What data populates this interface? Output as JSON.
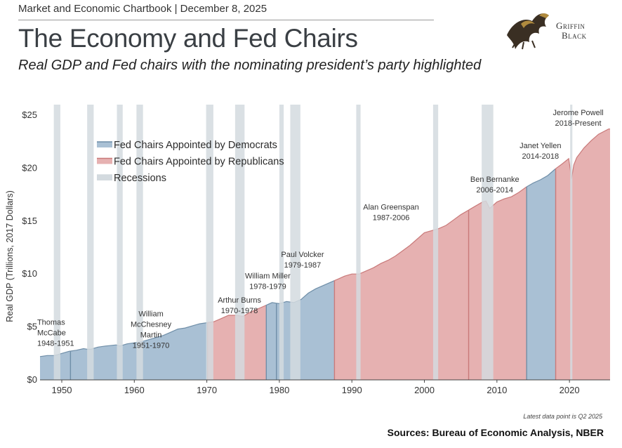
{
  "header": {
    "chartbook_line": "Market and Economic Chartbook | December 8, 2025",
    "title": "The Economy and Fed Chairs",
    "subtitle": "Real GDP and Fed chairs with the nominating president’s party highlighted"
  },
  "logo": {
    "line1": "Griffin",
    "line2": "Black",
    "icon": "griffin-icon"
  },
  "footnote": "Latest data point is Q2 2025",
  "source": "Sources: Bureau of Economic Analysis, NBER",
  "colors": {
    "democrat": "#a9c0d4",
    "democrat_line": "#6f8ea8",
    "republican": "#e6b1b1",
    "republican_line": "#c97a7a",
    "recession": "#d3dadf",
    "axis_text": "#333333"
  },
  "chart_data": {
    "type": "area",
    "ylabel": "Real GDP (Trillions, 2017 Dollars)",
    "xlim": [
      1947,
      2025.6
    ],
    "ylim": [
      0,
      26
    ],
    "yticks": [
      0,
      5,
      10,
      15,
      20,
      25
    ],
    "ytick_labels": [
      "$0",
      "$5",
      "$10",
      "$15",
      "$20",
      "$25"
    ],
    "xticks": [
      1950,
      1960,
      1970,
      1980,
      1990,
      2000,
      2010,
      2020
    ],
    "xtick_labels": [
      "1950",
      "1960",
      "1970",
      "1980",
      "1990",
      "2000",
      "2010",
      "2020"
    ],
    "legend": {
      "placement": "top-left",
      "items": [
        {
          "label": "Fed Chairs Appointed by Democrats",
          "key": "democrat"
        },
        {
          "label": "Fed Chairs Appointed by Republicans",
          "key": "republican"
        },
        {
          "label": "Recessions",
          "key": "recession"
        }
      ]
    },
    "gdp_series": {
      "x": [
        1947,
        1948,
        1949,
        1950,
        1951,
        1952,
        1953,
        1953.5,
        1954,
        1955,
        1956,
        1957.5,
        1958,
        1959,
        1960,
        1961,
        1962,
        1963,
        1964,
        1965,
        1966,
        1967,
        1968,
        1969,
        1970,
        1971,
        1972,
        1973,
        1974,
        1975,
        1976,
        1977,
        1978,
        1979,
        1980,
        1981,
        1982,
        1983,
        1984,
        1985,
        1986,
        1987,
        1988,
        1989,
        1990,
        1991,
        1992,
        1993,
        1994,
        1995,
        1996,
        1997,
        1998,
        1999,
        2000,
        2001,
        2002,
        2003,
        2004,
        2005,
        2006,
        2007,
        2008,
        2008.5,
        2009,
        2010,
        2011,
        2012,
        2013,
        2014,
        2015,
        2016,
        2017,
        2018,
        2019,
        2019.9,
        2020.3,
        2020.6,
        2021,
        2022,
        2023,
        2024,
        2025.4
      ],
      "y": [
        2.2,
        2.3,
        2.3,
        2.5,
        2.7,
        2.8,
        2.95,
        2.9,
        2.9,
        3.1,
        3.2,
        3.3,
        3.2,
        3.4,
        3.5,
        3.6,
        3.8,
        4.0,
        4.2,
        4.5,
        4.8,
        4.9,
        5.1,
        5.3,
        5.4,
        5.5,
        5.8,
        6.1,
        6.1,
        6.0,
        6.4,
        6.7,
        7.0,
        7.3,
        7.2,
        7.4,
        7.3,
        7.6,
        8.2,
        8.6,
        8.9,
        9.2,
        9.5,
        9.8,
        10.0,
        10.0,
        10.3,
        10.6,
        11.0,
        11.3,
        11.7,
        12.2,
        12.7,
        13.3,
        13.9,
        14.1,
        14.3,
        14.6,
        15.1,
        15.6,
        16.0,
        16.4,
        16.8,
        16.9,
        16.2,
        16.8,
        17.1,
        17.3,
        17.7,
        18.2,
        18.6,
        18.9,
        19.3,
        19.9,
        20.4,
        20.9,
        19.0,
        20.3,
        21.0,
        21.9,
        22.6,
        23.2,
        23.7
      ]
    },
    "recessions": [
      [
        1948.9,
        1949.8
      ],
      [
        1953.5,
        1954.4
      ],
      [
        1957.6,
        1958.4
      ],
      [
        1960.3,
        1961.2
      ],
      [
        1969.9,
        1970.9
      ],
      [
        1973.9,
        1975.2
      ],
      [
        1980.0,
        1980.6
      ],
      [
        1981.5,
        1982.9
      ],
      [
        1990.6,
        1991.2
      ],
      [
        2001.2,
        2001.9
      ],
      [
        2007.9,
        2009.5
      ],
      [
        2020.1,
        2020.4
      ]
    ],
    "chairs": [
      {
        "name": "Thomas McCabe",
        "lines": [
          "Thomas",
          "McCabe",
          "1948-1951"
        ],
        "start": 1947.0,
        "end": 1951.2,
        "party": "democrat",
        "label_x": 1946.9,
        "label_y": 5.2
      },
      {
        "name": "William McChesney Martin",
        "lines": [
          "William",
          "McChesney",
          "Martin",
          "1951-1970"
        ],
        "start": 1951.2,
        "end": 1970.1,
        "party": "democrat",
        "label_x": 1962.3,
        "label_y": 6.0
      },
      {
        "name": "Arthur Burns",
        "lines": [
          "Arthur Burns",
          "1970-1978"
        ],
        "start": 1970.1,
        "end": 1978.2,
        "party": "republican",
        "label_x": 1974.5,
        "label_y": 7.3
      },
      {
        "name": "William Miller",
        "lines": [
          "William Miller",
          "1978-1979"
        ],
        "start": 1978.2,
        "end": 1979.6,
        "party": "democrat",
        "label_x": 1978.4,
        "label_y": 9.6
      },
      {
        "name": "Paul Volcker",
        "lines": [
          "Paul Volcker",
          "1979-1987"
        ],
        "start": 1979.6,
        "end": 1987.6,
        "party": "democrat",
        "label_x": 1983.2,
        "label_y": 11.6
      },
      {
        "name": "Alan Greenspan",
        "lines": [
          "Alan Greenspan",
          "1987-2006"
        ],
        "start": 1987.6,
        "end": 2006.1,
        "party": "republican",
        "label_x": 1995.4,
        "label_y": 16.1
      },
      {
        "name": "Ben Bernanke",
        "lines": [
          "Ben Bernanke",
          "2006-2014"
        ],
        "start": 2006.1,
        "end": 2014.1,
        "party": "republican",
        "label_x": 2009.7,
        "label_y": 18.7
      },
      {
        "name": "Janet Yellen",
        "lines": [
          "Janet Yellen",
          "2014-2018"
        ],
        "start": 2014.1,
        "end": 2018.1,
        "party": "democrat",
        "label_x": 2016.0,
        "label_y": 21.9
      },
      {
        "name": "Jerome Powell",
        "lines": [
          "Jerome Powell",
          "2018-Present"
        ],
        "start": 2018.1,
        "end": 2025.6,
        "party": "republican",
        "label_x": 2021.2,
        "label_y": 25.0
      }
    ]
  }
}
